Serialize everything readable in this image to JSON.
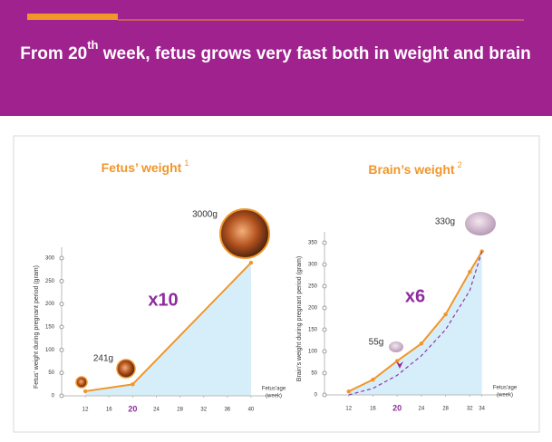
{
  "header": {
    "title": "From 20",
    "title_sup": "th",
    "title_rest": " week, fetus grows very fast both in weight and brain"
  },
  "chart_data": [
    {
      "type": "line",
      "title": "Fetus’ weight",
      "title_note": "1",
      "ylabel": "Fetus’ weight during pregnant period (gram)",
      "xlabel": [
        "Fetus’age",
        "(week)"
      ],
      "x": [
        12,
        20,
        40
      ],
      "series": [
        {
          "color": "#f0962a",
          "values": [
            10,
            25,
            290
          ]
        }
      ],
      "fill": "#d6eef9",
      "xlim": [
        8,
        42
      ],
      "ylim": [
        0,
        300
      ],
      "xticks": [
        12,
        16,
        20,
        24,
        28,
        32,
        36,
        40
      ],
      "yticks": [
        0,
        50,
        100,
        150,
        200,
        250,
        300
      ],
      "highlight_xtick": 20,
      "annotations": [
        "241g",
        "3000g",
        "x10"
      ]
    },
    {
      "type": "line",
      "title": "Brain’s weight",
      "title_note": "2",
      "ylabel": "Brain’s weight during pregnant period (gram)",
      "xlabel": [
        "Fetus’age",
        "(week)"
      ],
      "x": [
        12,
        16,
        20,
        24,
        28,
        32,
        34
      ],
      "series": [
        {
          "color": "#f0962a",
          "values": [
            8,
            35,
            78,
            118,
            185,
            283,
            330
          ]
        },
        {
          "color": "#8e3aa8",
          "dashed": true,
          "values": [
            0,
            15,
            45,
            90,
            150,
            240,
            330
          ]
        }
      ],
      "fill": "#d6eef9",
      "xlim": [
        8,
        36
      ],
      "ylim": [
        0,
        350
      ],
      "xticks": [
        12,
        16,
        20,
        24,
        28,
        32,
        34
      ],
      "yticks": [
        0,
        50,
        100,
        150,
        200,
        250,
        300,
        350
      ],
      "highlight_xtick": 20,
      "annotations": [
        "55g",
        "330g",
        "x6"
      ]
    }
  ]
}
